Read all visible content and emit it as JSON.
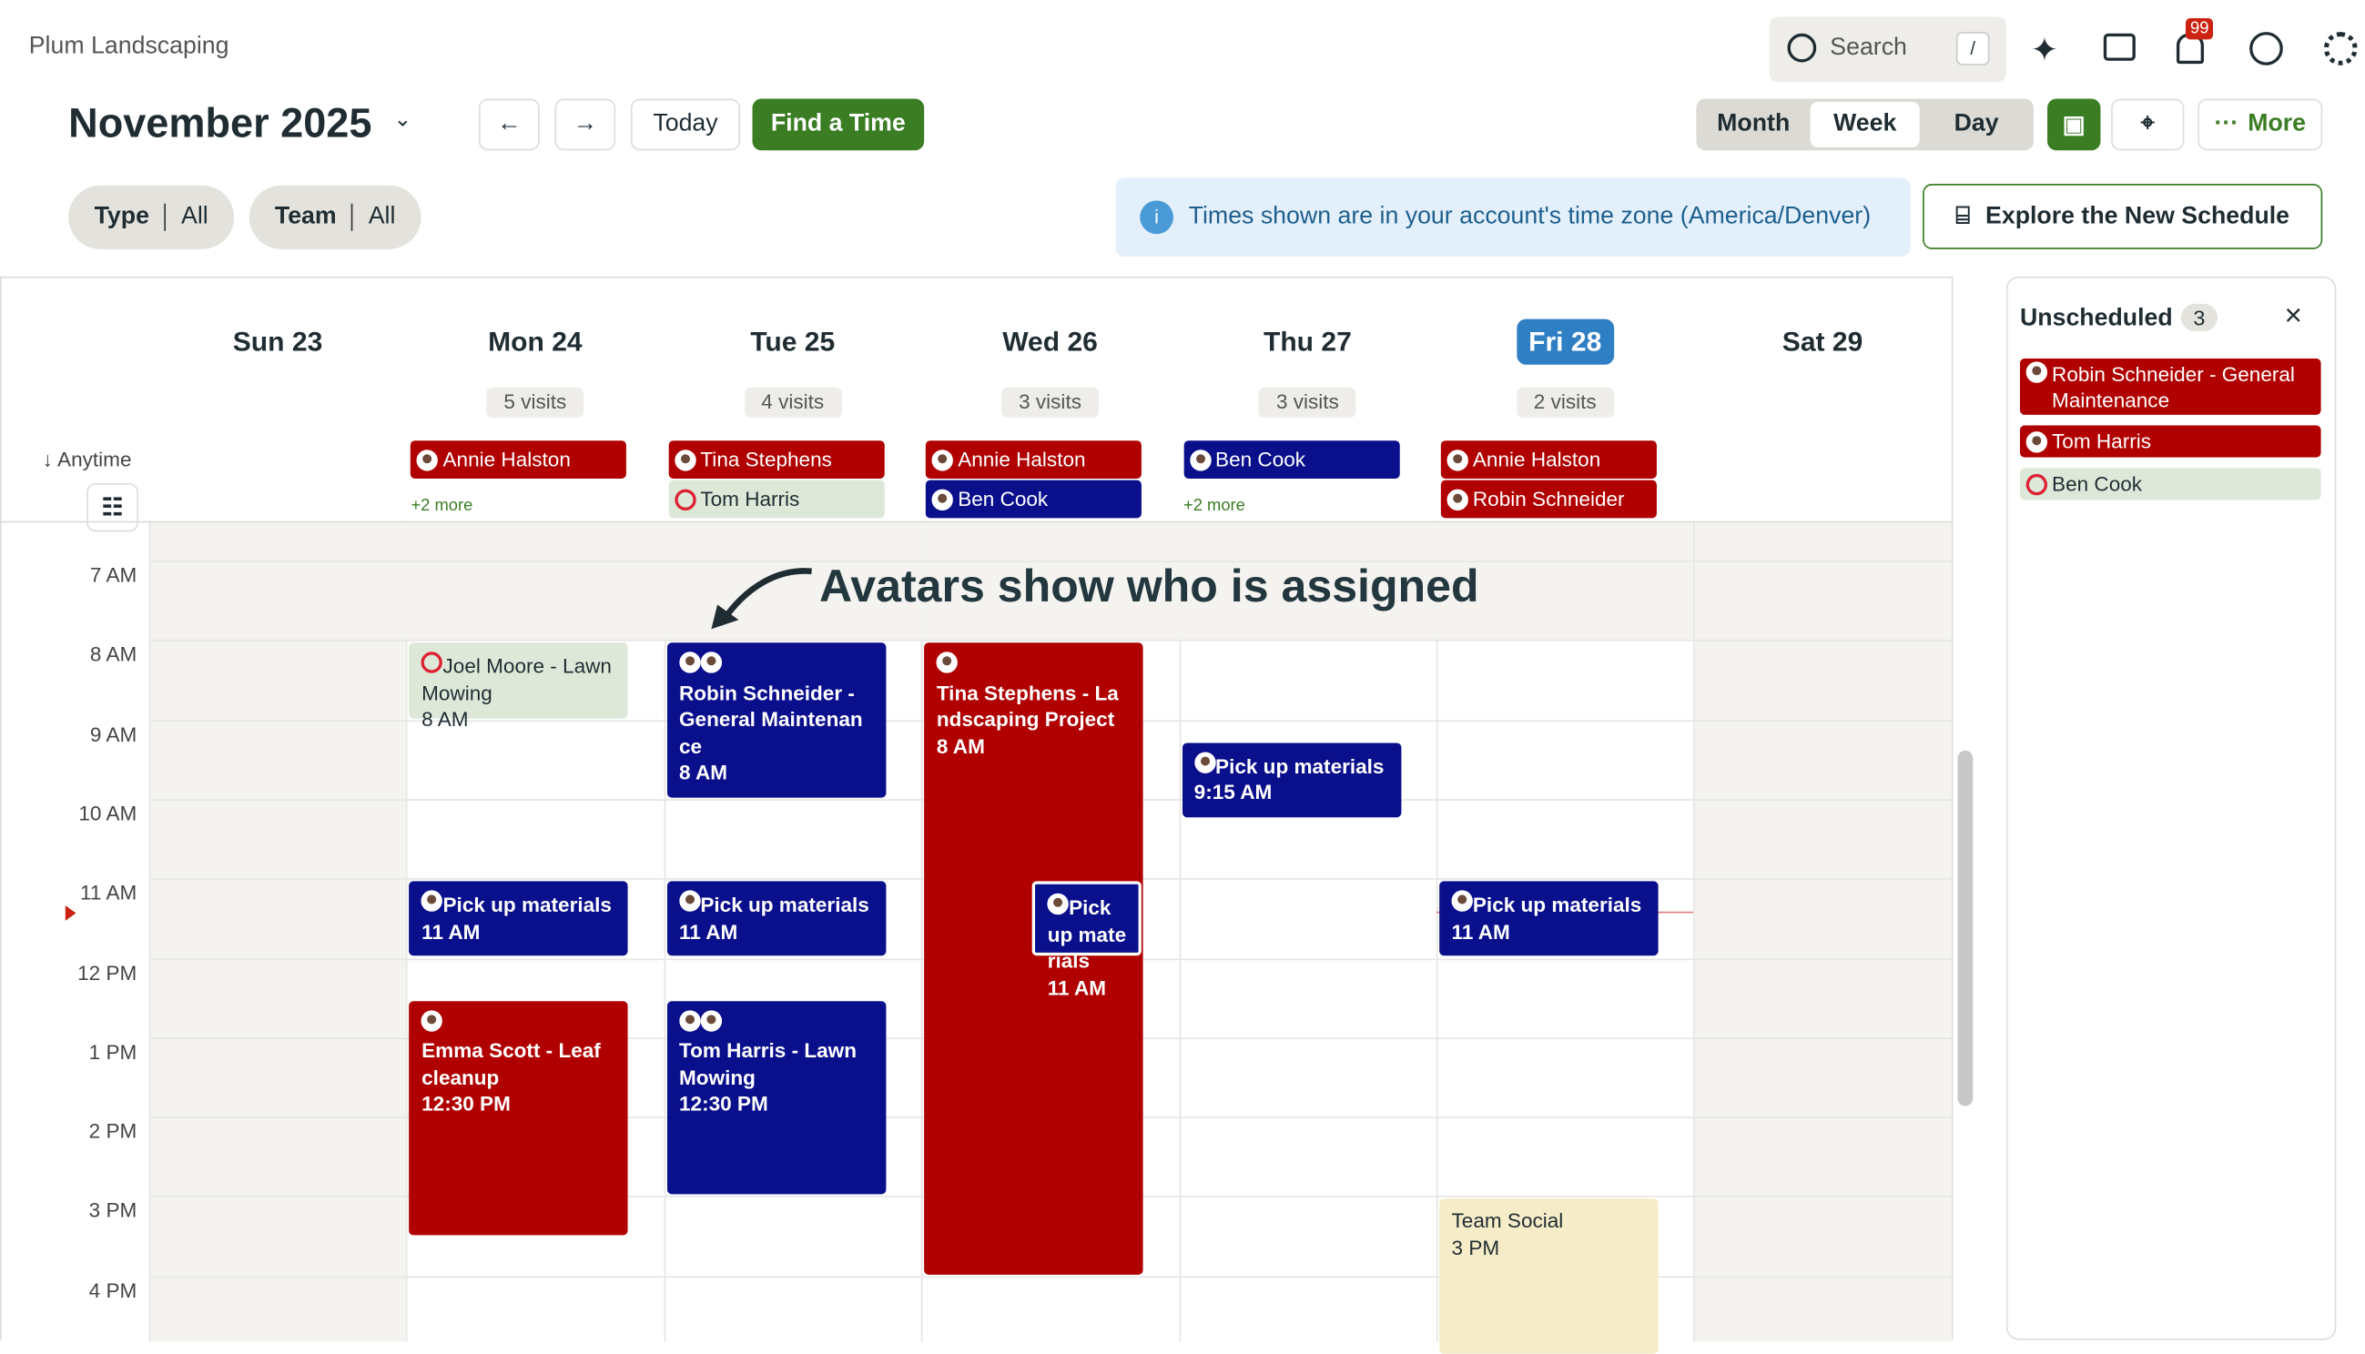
{
  "header": {
    "org": "Plum Landscaping",
    "search": "Search",
    "search_key": "/",
    "notifications": "99"
  },
  "toolbar": {
    "period": "November 2025",
    "today": "Today",
    "find": "Find a Time",
    "views": [
      "Month",
      "Week",
      "Day"
    ],
    "active_view": "Week",
    "more": "More"
  },
  "filters": [
    {
      "label": "Type",
      "value": "All"
    },
    {
      "label": "Team",
      "value": "All"
    }
  ],
  "notice": "Times shown are in your account's time zone (America/Denver)",
  "explore": "Explore the New Schedule",
  "anytime_label": "Anytime",
  "days": [
    {
      "name": "Sun 23",
      "anytime": []
    },
    {
      "name": "Mon 24",
      "visits": "5 visits",
      "anytime": [
        {
          "title": "Annie Halston",
          "color": "#b00000"
        }
      ],
      "more": "+2 more"
    },
    {
      "name": "Tue 25",
      "visits": "4 visits",
      "anytime": [
        {
          "title": "Tina Stephens",
          "color": "#b00000"
        },
        {
          "title": "Tom Harris",
          "color": "unassigned"
        }
      ]
    },
    {
      "name": "Wed 26",
      "visits": "3 visits",
      "anytime": [
        {
          "title": "Annie Halston",
          "color": "#b00000"
        },
        {
          "title": "Ben Cook",
          "color": "#0a0f8c"
        }
      ]
    },
    {
      "name": "Thu 27",
      "visits": "3 visits",
      "anytime": [
        {
          "title": "Ben Cook",
          "color": "#0a0f8c"
        }
      ],
      "more": "+2 more"
    },
    {
      "name": "Fri 28",
      "visits": "2 visits",
      "today": true,
      "anytime": [
        {
          "title": "Annie Halston",
          "color": "#b00000"
        },
        {
          "title": "Robin Schneider",
          "color": "#b00000"
        }
      ]
    },
    {
      "name": "Sat 29",
      "anytime": []
    }
  ],
  "hours": [
    "7 AM",
    "8 AM",
    "9 AM",
    "10 AM",
    "11 AM",
    "12 PM",
    "1 PM",
    "2 PM",
    "3 PM",
    "4 PM"
  ],
  "events": [
    {
      "day": 1,
      "title": "Joel Moore - Lawn Mowing",
      "time": "8 AM",
      "start": 8,
      "end": 9,
      "color": "unassigned",
      "avatars": 0
    },
    {
      "day": 2,
      "title": "Robin Schneider - General Maintenance",
      "time": "8 AM",
      "start": 8,
      "end": 10,
      "color": "#0a0f8c",
      "avatars": 2
    },
    {
      "day": 3,
      "title": "Tina Stephens - Landscaping Project",
      "time": "8 AM",
      "start": 8,
      "end": 16,
      "color": "#b00000",
      "avatars": 1
    },
    {
      "day": 4,
      "title": "Pick up materials",
      "time": "9:15 AM",
      "start": 9.25,
      "end": 10.25,
      "color": "#0a0f8c",
      "avatars": 1
    },
    {
      "day": 1,
      "title": "Pick up materials",
      "time": "11 AM",
      "start": 11,
      "end": 12,
      "color": "#0a0f8c",
      "avatars": 1
    },
    {
      "day": 2,
      "title": "Pick up materials",
      "time": "11 AM",
      "start": 11,
      "end": 12,
      "color": "#0a0f8c",
      "avatars": 1
    },
    {
      "day": 3,
      "title": "Pick up materials",
      "time": "11 AM",
      "start": 11,
      "end": 12,
      "color": "#0a0f8c",
      "avatars": 1,
      "overlap": true
    },
    {
      "day": 5,
      "title": "Pick up materials",
      "time": "11 AM",
      "start": 11,
      "end": 12,
      "color": "#0a0f8c",
      "avatars": 1
    },
    {
      "day": 1,
      "title": "Emma Scott - Leaf cleanup",
      "time": "12:30 PM",
      "start": 12.5,
      "end": 15.5,
      "color": "#b00000",
      "avatars": 1
    },
    {
      "day": 2,
      "title": "Tom Harris - Lawn Mowing",
      "time": "12:30 PM",
      "start": 12.5,
      "end": 15,
      "color": "#0a0f8c",
      "avatars": 2
    },
    {
      "day": 5,
      "title": "Team Social",
      "time": "3 PM",
      "start": 15,
      "end": 17,
      "color": "social",
      "avatars": 0
    }
  ],
  "annotation": "Avatars show who is assigned",
  "unscheduled": {
    "title": "Unscheduled",
    "count": "3",
    "items": [
      {
        "title": "Robin Schneider - General Maintenance",
        "color": "#b00000"
      },
      {
        "title": "Tom Harris",
        "color": "#b00000"
      },
      {
        "title": "Ben Cook",
        "color": "unassigned"
      }
    ]
  }
}
